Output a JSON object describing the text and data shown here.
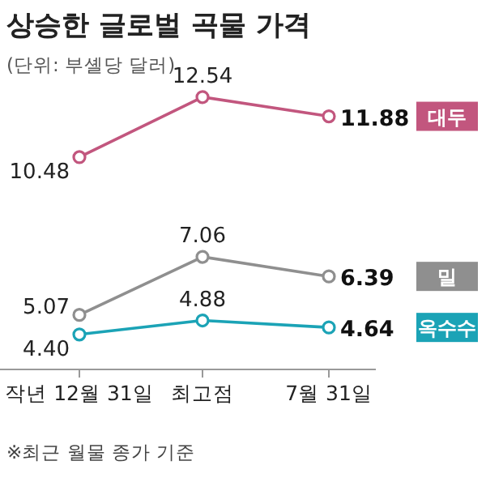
{
  "chart_data": {
    "type": "line",
    "title": "상승한 글로벌 곡물 가격",
    "subtitle": "(단위: 부셸당 달러)",
    "categories": [
      "작년 12월 31일",
      "최고점",
      "7월 31일"
    ],
    "series": [
      {
        "name": "대두",
        "color": "#c2567e",
        "values": [
          10.48,
          12.54,
          11.88
        ],
        "value_labels": [
          "10.48",
          "12.54",
          "11.88"
        ]
      },
      {
        "name": "밀",
        "color": "#8f8f8f",
        "values": [
          5.07,
          7.06,
          6.39
        ],
        "value_labels": [
          "5.07",
          "7.06",
          "6.39"
        ]
      },
      {
        "name": "옥수수",
        "color": "#1ba3b6",
        "values": [
          4.4,
          4.88,
          4.64
        ],
        "value_labels": [
          "4.40",
          "4.88",
          "4.64"
        ]
      }
    ],
    "marker": "circle",
    "annotations": [
      "※최근 월물 종가 기준"
    ]
  }
}
